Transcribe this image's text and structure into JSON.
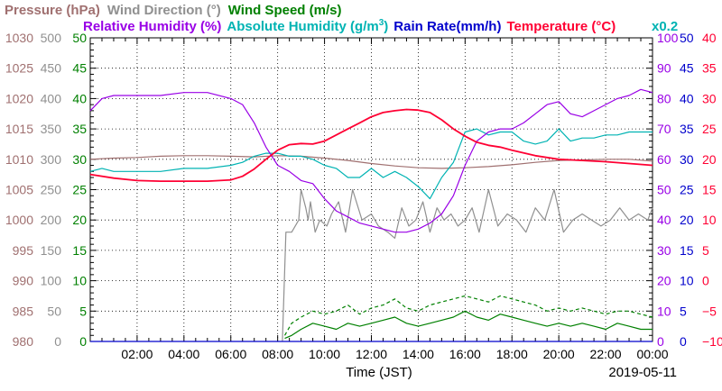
{
  "chart_data": {
    "type": "line",
    "legend": {
      "line1": [
        {
          "text": "Pressure (hPa)",
          "color": "#a07070"
        },
        {
          "text": "Wind Direction (°)",
          "color": "#909090"
        },
        {
          "text": "Wind Speed (m/s)",
          "color": "#008000"
        }
      ],
      "line2": [
        {
          "text": "Relative Humidity (%)",
          "color": "#9900e6"
        },
        {
          "text": "Absolute Humidity (g/m",
          "color": "#00b3b3"
        },
        {
          "text": "3",
          "color": "#00b3b3"
        },
        {
          "text": ")",
          "color": "#00b3b3"
        },
        {
          "text": "Rain Rate(mm/h)",
          "color": "#0000cc"
        },
        {
          "text": "Temperature (°C)",
          "color": "#ff0033"
        }
      ],
      "multiplier": "x0.2"
    },
    "xlabel": "Time (JST)",
    "date": "2019-05-11",
    "x_ticks": [
      "02:00",
      "04:00",
      "06:00",
      "08:00",
      "10:00",
      "12:00",
      "14:00",
      "16:00",
      "18:00",
      "20:00",
      "22:00",
      "00:00"
    ],
    "x_range_hours": [
      0,
      24
    ],
    "grid": true,
    "axes": {
      "pressure": {
        "color": "#a07070",
        "range": [
          980,
          1030
        ],
        "ticks": [
          "980",
          "985",
          "990",
          "995",
          "1000",
          "1005",
          "1010",
          "1015",
          "1020",
          "1025",
          "1030"
        ]
      },
      "wind_direction": {
        "color": "#909090",
        "range": [
          0,
          500
        ],
        "ticks": [
          "0",
          "50",
          "100",
          "150",
          "200",
          "250",
          "300",
          "350",
          "400",
          "450",
          "500"
        ]
      },
      "wind_speed": {
        "color": "#008000",
        "range": [
          0,
          50
        ],
        "ticks": [
          "0",
          "5",
          "10",
          "15",
          "20",
          "25",
          "30",
          "35",
          "40",
          "45",
          "50"
        ]
      },
      "relative_humidity": {
        "color": "#9900e6",
        "range": [
          0,
          100
        ],
        "ticks": [
          "0",
          "10",
          "20",
          "30",
          "40",
          "50",
          "60",
          "70",
          "80",
          "90",
          "100"
        ]
      },
      "rain_rate": {
        "color": "#0000cc",
        "range": [
          0,
          50
        ],
        "ticks": [
          "0",
          "5",
          "10",
          "15",
          "20",
          "25",
          "30",
          "35",
          "40",
          "45",
          "50"
        ]
      },
      "temperature": {
        "color": "#ff0033",
        "range": [
          -10,
          40
        ],
        "ticks": [
          "−10",
          "−5",
          "0",
          "5",
          "10",
          "15",
          "20",
          "25",
          "30",
          "35",
          "40"
        ]
      }
    },
    "series": [
      {
        "name": "Pressure (hPa)",
        "axis": "pressure",
        "color": "#a07070",
        "x": [
          0,
          1,
          2,
          3,
          4,
          5,
          6,
          7,
          8,
          9,
          10,
          11,
          12,
          13,
          14,
          15,
          16,
          17,
          18,
          19,
          20,
          21,
          22,
          23,
          24
        ],
        "values": [
          1010.0,
          1010.2,
          1010.3,
          1010.5,
          1010.6,
          1010.6,
          1010.5,
          1010.4,
          1010.6,
          1010.5,
          1010.2,
          1009.8,
          1009.3,
          1008.9,
          1008.6,
          1008.5,
          1008.6,
          1008.8,
          1009.1,
          1009.5,
          1009.8,
          1009.9,
          1010.0,
          1010.0,
          1009.7
        ]
      },
      {
        "name": "Temperature (°C)",
        "axis": "temperature",
        "color": "#ff0033",
        "x": [
          0,
          1,
          2,
          3,
          4,
          5,
          6,
          6.5,
          7,
          7.5,
          8,
          8.5,
          9,
          9.5,
          10,
          10.5,
          11,
          11.5,
          12,
          12.5,
          13,
          13.5,
          14,
          14.5,
          15,
          15.5,
          16,
          16.5,
          17,
          17.5,
          18,
          19,
          20,
          21,
          22,
          23,
          24
        ],
        "values": [
          17.5,
          16.9,
          16.5,
          16.4,
          16.4,
          16.4,
          16.6,
          17.2,
          18.4,
          20.0,
          21.5,
          22.4,
          22.6,
          22.5,
          23.0,
          24.0,
          25.0,
          26.0,
          27.0,
          27.7,
          28.0,
          28.2,
          28.1,
          27.7,
          26.5,
          25.0,
          23.8,
          22.8,
          22.3,
          22.0,
          21.5,
          20.6,
          20.0,
          19.8,
          19.6,
          19.3,
          19.0
        ]
      },
      {
        "name": "Relative Humidity (%)",
        "axis": "relative_humidity",
        "color": "#9900e6",
        "x": [
          0,
          0.5,
          1,
          2,
          3,
          4,
          5,
          6,
          6.5,
          7,
          7.5,
          8,
          8.5,
          9,
          9.5,
          10,
          10.5,
          11,
          11.5,
          12,
          12.5,
          13,
          13.5,
          14,
          14.5,
          15,
          15.5,
          16,
          16.5,
          17,
          17.5,
          18,
          18.5,
          19,
          19.5,
          20,
          20.5,
          21,
          21.5,
          22,
          22.5,
          23,
          23.5,
          24
        ],
        "values": [
          76,
          80,
          81,
          81,
          81,
          82,
          82,
          80,
          78,
          72,
          64,
          58,
          56,
          53,
          52,
          47,
          43,
          41,
          39,
          38,
          37,
          36,
          36,
          37,
          39,
          42,
          48,
          58,
          66,
          69,
          70,
          70,
          72,
          75,
          78,
          79,
          75,
          74,
          76,
          78,
          80,
          81,
          83,
          82
        ]
      },
      {
        "name": "Absolute Humidity",
        "axis": "relative_humidity",
        "color": "#00b3b3",
        "x": [
          0,
          0.5,
          1,
          2,
          3,
          4,
          5,
          6,
          6.5,
          7,
          7.5,
          8,
          8.5,
          9,
          9.5,
          10,
          10.5,
          11,
          11.5,
          12,
          12.5,
          13,
          13.5,
          14,
          14.5,
          15,
          15.5,
          16,
          16.5,
          17,
          17.5,
          18,
          18.5,
          19,
          19.5,
          20,
          20.5,
          21,
          21.5,
          22,
          22.5,
          23,
          23.5,
          24
        ],
        "values": [
          56,
          57,
          56,
          56,
          56,
          57,
          57,
          58,
          59,
          61,
          62,
          62,
          61,
          61,
          60,
          58,
          57,
          54,
          54,
          57,
          54,
          56,
          54,
          51,
          47,
          54,
          59,
          69,
          70,
          68,
          69,
          69,
          66,
          65,
          66,
          70,
          66,
          67,
          67,
          68,
          68,
          69,
          69,
          69
        ]
      },
      {
        "name": "Wind Direction (°)",
        "axis": "wind_direction",
        "color": "#909090",
        "x": [
          0,
          8.2,
          8.35,
          8.6,
          8.9,
          9.0,
          9.2,
          9.3,
          9.4,
          9.6,
          9.8,
          10.1,
          10.3,
          10.6,
          10.9,
          11.2,
          11.6,
          12.0,
          12.3,
          12.7,
          13.0,
          13.3,
          13.6,
          13.9,
          14.2,
          14.5,
          14.8,
          15.1,
          15.4,
          15.7,
          16.0,
          16.3,
          16.6,
          17.0,
          17.4,
          17.8,
          18.2,
          18.6,
          19.0,
          19.4,
          19.8,
          20.2,
          20.6,
          21.0,
          21.4,
          21.8,
          22.2,
          22.6,
          23.0,
          23.4,
          23.8,
          24
        ],
        "values": [
          null,
          0,
          180,
          180,
          200,
          250,
          220,
          200,
          230,
          180,
          200,
          190,
          210,
          230,
          180,
          250,
          200,
          210,
          190,
          180,
          170,
          220,
          190,
          200,
          230,
          180,
          220,
          200,
          210,
          190,
          200,
          220,
          180,
          250,
          190,
          210,
          200,
          180,
          220,
          200,
          250,
          180,
          200,
          210,
          200,
          190,
          200,
          220,
          200,
          210,
          200,
          220
        ]
      },
      {
        "name": "Wind Speed (m/s)",
        "axis": "wind_speed",
        "color": "#008000",
        "x": [
          0,
          8.3,
          8.6,
          9,
          9.5,
          10,
          10.5,
          11,
          11.5,
          12,
          12.5,
          13,
          13.5,
          14,
          14.5,
          15,
          15.5,
          16,
          16.5,
          17,
          17.5,
          18,
          18.5,
          19,
          19.5,
          20,
          20.5,
          21,
          21.5,
          22,
          22.5,
          23,
          23.5,
          24
        ],
        "values": [
          null,
          0.5,
          1,
          2,
          3,
          2.5,
          2,
          3,
          2.5,
          3,
          3.5,
          4,
          3,
          2.5,
          3,
          3.5,
          4,
          5,
          4,
          3.5,
          4.5,
          4,
          3.5,
          3,
          2.5,
          3,
          2.5,
          3,
          2.5,
          2,
          3,
          2.5,
          2,
          2
        ]
      },
      {
        "name": "Wind Speed gust (m/s)",
        "axis": "wind_speed",
        "color": "#008000",
        "dashed": true,
        "x": [
          0,
          8.3,
          8.6,
          9,
          9.5,
          10,
          10.5,
          11,
          11.5,
          12,
          12.5,
          13,
          13.5,
          14,
          14.5,
          15,
          15.5,
          16,
          16.5,
          17,
          17.5,
          18,
          18.5,
          19,
          19.5,
          20,
          20.5,
          21,
          21.5,
          22,
          22.5,
          23,
          23.5,
          24
        ],
        "values": [
          null,
          1,
          3,
          4,
          5,
          4.5,
          5,
          6,
          4.5,
          5.5,
          6,
          7,
          5.5,
          5,
          6,
          6.5,
          7,
          7.5,
          7,
          6.5,
          7.5,
          7,
          6.5,
          6,
          5,
          5.5,
          5,
          5.5,
          5,
          4.5,
          5,
          5,
          4.5,
          4
        ]
      },
      {
        "name": "Rain Rate(mm/h)",
        "axis": "rain_rate",
        "color": "#0000cc",
        "x": [
          0,
          24
        ],
        "values": [
          0,
          0
        ]
      }
    ]
  }
}
